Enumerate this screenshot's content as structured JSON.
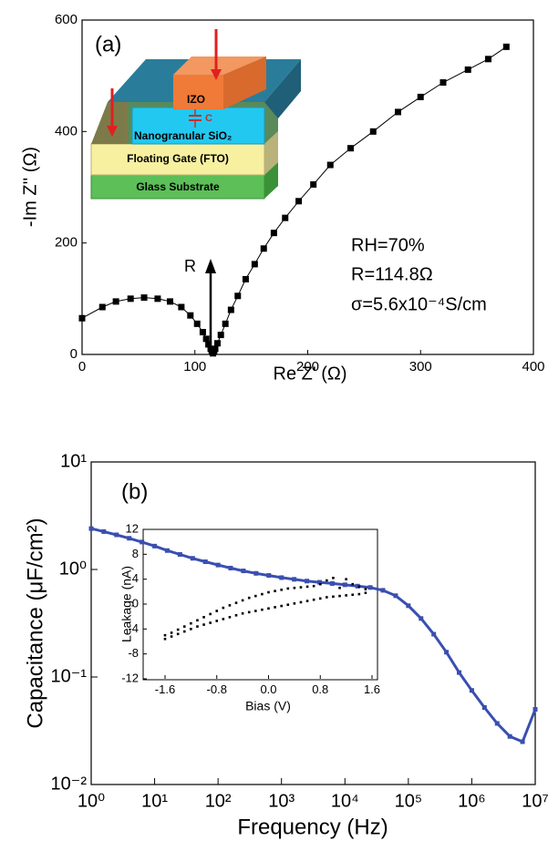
{
  "chart_data": [
    {
      "type": "line",
      "panel": "(a)",
      "x_label": "Re Z' (Ω)",
      "y_label": "-Im Z'' (Ω)",
      "color": "#000000",
      "x": [
        0,
        18,
        30,
        43,
        55,
        67,
        78,
        88,
        96,
        102,
        107,
        110,
        112,
        114,
        115,
        116,
        117,
        118,
        120,
        123,
        127,
        132,
        138,
        145,
        153,
        161,
        170,
        180,
        192,
        205,
        220,
        238,
        258,
        280,
        300,
        320,
        342,
        360,
        376
      ],
      "values": [
        65,
        85,
        95,
        100,
        102,
        100,
        95,
        85,
        70,
        55,
        40,
        28,
        18,
        10,
        5,
        2,
        5,
        10,
        20,
        35,
        55,
        80,
        105,
        135,
        162,
        190,
        218,
        245,
        275,
        305,
        340,
        370,
        400,
        435,
        462,
        488,
        511,
        530,
        552
      ],
      "xlim": [
        0,
        400
      ],
      "xticks": [
        0,
        100,
        200,
        300,
        400
      ],
      "ylim": [
        0,
        600
      ],
      "yticks": [
        0,
        200,
        400,
        600
      ],
      "annotations": [
        "RH=70%",
        "R=114.8Ω",
        "σ=5.6x10⁻⁴S/cm",
        "R"
      ],
      "inset_labels": [
        "IZO",
        "C",
        "Nanogranular SiO₂",
        "Floating Gate (FTO)",
        "Glass Substrate"
      ]
    },
    {
      "type": "line",
      "panel": "(b)",
      "x_label": "Frequency (Hz)",
      "y_label": "Capacitance (μF/cm²)",
      "color": "#3a4fb0",
      "log_scale": true,
      "x": [
        1,
        1.58,
        2.51,
        3.98,
        6.31,
        10,
        15.8,
        25.1,
        39.8,
        63.1,
        100,
        158,
        251,
        398,
        631,
        1000,
        1585,
        2512,
        3981,
        6310,
        10000,
        15849,
        25119,
        39811,
        63096,
        100000,
        158489,
        251189,
        398107,
        630957,
        1000000,
        1584893,
        2511886,
        3981072,
        6309573,
        10000000
      ],
      "values": [
        2.4,
        2.25,
        2.1,
        1.95,
        1.8,
        1.65,
        1.5,
        1.38,
        1.27,
        1.18,
        1.1,
        1.03,
        0.97,
        0.92,
        0.88,
        0.84,
        0.81,
        0.78,
        0.76,
        0.74,
        0.72,
        0.7,
        0.68,
        0.64,
        0.57,
        0.46,
        0.35,
        0.25,
        0.17,
        0.11,
        0.075,
        0.052,
        0.037,
        0.028,
        0.025,
        0.05
      ],
      "xlim": [
        1,
        10000000
      ],
      "xticks": [
        {
          "value": 1,
          "label": "10⁰"
        },
        {
          "value": 10,
          "label": "10¹"
        },
        {
          "value": 100,
          "label": "10²"
        },
        {
          "value": 1000,
          "label": "10³"
        },
        {
          "value": 10000,
          "label": "10⁴"
        },
        {
          "value": 100000,
          "label": "10⁵"
        },
        {
          "value": 1000000,
          "label": "10⁶"
        },
        {
          "value": 10000000,
          "label": "10⁷"
        }
      ],
      "ylim": [
        0.01,
        10
      ],
      "yticks": [
        {
          "value": 0.01,
          "label": "10⁻²"
        },
        {
          "value": 0.1,
          "label": "10⁻¹"
        },
        {
          "value": 1,
          "label": "10⁰"
        },
        {
          "value": 10,
          "label": "10¹"
        }
      ]
    },
    {
      "type": "scatter",
      "x_label": "Bias (V)",
      "y_label": "Leakage (nA)",
      "x": [
        -1.6,
        -1.5,
        -1.4,
        -1.3,
        -1.2,
        -1.1,
        -1.0,
        -0.9,
        -0.8,
        -0.7,
        -0.6,
        -0.5,
        -0.4,
        -0.3,
        -0.2,
        -0.1,
        0,
        0.1,
        0.2,
        0.3,
        0.4,
        0.5,
        0.6,
        0.7,
        0.8,
        0.9,
        1.0,
        1.1,
        1.2,
        1.3,
        1.4,
        1.5
      ],
      "series": [
        {
          "color": "#000000",
          "values": [
            -5,
            -4.6,
            -4.1,
            -3.6,
            -3.1,
            -2.6,
            -2.1,
            -1.6,
            -1.1,
            -0.6,
            -0.2,
            0.2,
            0.6,
            1.0,
            1.3,
            1.6,
            1.9,
            2.1,
            2.3,
            2.5,
            2.6,
            2.7,
            2.8,
            2.9,
            3.2,
            3.8,
            4.2,
            2.6,
            4.0,
            3.2,
            2.8,
            2.4
          ]
        },
        {
          "color": "#000000",
          "values": [
            -5.6,
            -5.2,
            -4.8,
            -4.4,
            -4.0,
            -3.6,
            -3.3,
            -3.0,
            -2.7,
            -2.4,
            -2.1,
            -1.8,
            -1.5,
            -1.3,
            -1.1,
            -0.9,
            -0.7,
            -0.5,
            -0.3,
            -0.1,
            0.1,
            0.3,
            0.5,
            0.7,
            0.9,
            1.1,
            1.2,
            1.3,
            1.4,
            1.5,
            1.6,
            1.8
          ]
        }
      ],
      "xlim": [
        -1.6,
        1.6
      ],
      "xticks": [
        -1.6,
        -0.8,
        {
          "value": 0,
          "label": "0.0"
        },
        0.8,
        1.6
      ],
      "ylim": [
        -12,
        12
      ],
      "yticks": [
        -12,
        -8,
        -4,
        0,
        4,
        8,
        12
      ]
    }
  ]
}
